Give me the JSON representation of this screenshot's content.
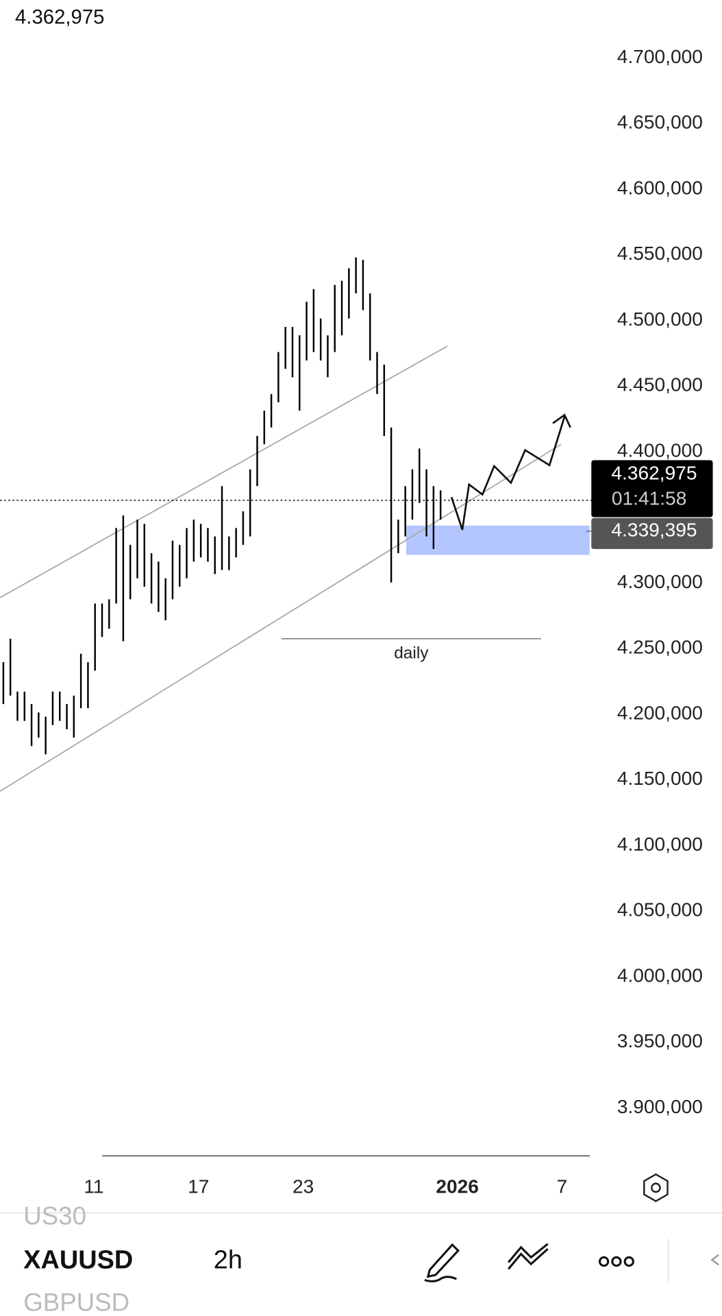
{
  "chart_data": {
    "type": "range-bar",
    "color": "#000000",
    "highs": [
      4239.6,
      4257.5,
      4217.2,
      4217.2,
      4207.7,
      4201.3,
      4198.1,
      4217.2,
      4217.2,
      4207.7,
      4214.1,
      4246.0,
      4239.6,
      4284.3,
      4284.3,
      4287.5,
      4341.8,
      4351.4,
      4329.0,
      4348.2,
      4345.0,
      4322.6,
      4316.2,
      4303.5,
      4332.2,
      4329.0,
      4341.8,
      4348.2,
      4345.0,
      4341.8,
      4335.4,
      4373.7,
      4335.4,
      4341.8,
      4354.5,
      4386.5,
      4412.0,
      4431.2,
      4443.9,
      4475.9,
      4495.0,
      4495.0,
      4488.6,
      4514.2,
      4523.8,
      4501.4,
      4488.6,
      4527.0,
      4530.2,
      4539.7,
      4548.0,
      4546.1,
      4520.6,
      4475.9,
      4466.3,
      4418.4,
      4348.2,
      4373.7,
      4386.5,
      4402.4,
      4386.5,
      4373.7,
      4370.5
    ],
    "lows": [
      4207.7,
      4214.1,
      4194.9,
      4194.9,
      4175.7,
      4182.1,
      4169.4,
      4191.7,
      4194.9,
      4188.5,
      4182.1,
      4204.5,
      4204.5,
      4233.2,
      4258.8,
      4265.1,
      4284.3,
      4255.6,
      4287.5,
      4303.5,
      4297.1,
      4284.3,
      4277.9,
      4271.5,
      4287.5,
      4297.1,
      4303.5,
      4316.2,
      4319.4,
      4316.2,
      4306.7,
      4309.8,
      4309.8,
      4319.4,
      4329.0,
      4335.4,
      4373.7,
      4405.6,
      4418.4,
      4437.6,
      4463.1,
      4456.7,
      4431.2,
      4469.5,
      4475.9,
      4469.5,
      4456.7,
      4475.9,
      4488.6,
      4501.4,
      4520.6,
      4507.8,
      4469.5,
      4443.9,
      4412.0,
      4300.3,
      4322.6,
      4335.4,
      4348.2,
      4360.9,
      4335.4,
      4325.8,
      4348.2
    ],
    "ylim": [
      3862.8,
      4744.1
    ],
    "yticks": [
      {
        "value": 4700,
        "label": "4.700,000"
      },
      {
        "value": 4650,
        "label": "4.650,000"
      },
      {
        "value": 4600,
        "label": "4.600,000"
      },
      {
        "value": 4550,
        "label": "4.550,000"
      },
      {
        "value": 4500,
        "label": "4.500,000"
      },
      {
        "value": 4450,
        "label": "4.450,000"
      },
      {
        "value": 4400,
        "label": "4.400,000"
      },
      {
        "value": 4300,
        "label": "4.300,000"
      },
      {
        "value": 4250,
        "label": "4.250,000"
      },
      {
        "value": 4200,
        "label": "4.200,000"
      },
      {
        "value": 4150,
        "label": "4.150,000"
      },
      {
        "value": 4100,
        "label": "4.100,000"
      },
      {
        "value": 4050,
        "label": "4.050,000"
      },
      {
        "value": 4000,
        "label": "4.000,000"
      },
      {
        "value": 3950,
        "label": "3.950,000"
      },
      {
        "value": 3900,
        "label": "3.900,000"
      }
    ],
    "x_labels": [
      "11",
      "17",
      "23",
      "2026",
      "7"
    ],
    "last_price": 4362.975,
    "last_price_label": "4.362,975",
    "countdown": "01:41:58",
    "bid_price": 4339.395,
    "bid_price_label": "4.339,395",
    "annotation": "daily"
  },
  "toolbar": {
    "symbols": [
      "US30",
      "XAUUSD",
      "GBPUSD"
    ],
    "interval": "2h"
  }
}
